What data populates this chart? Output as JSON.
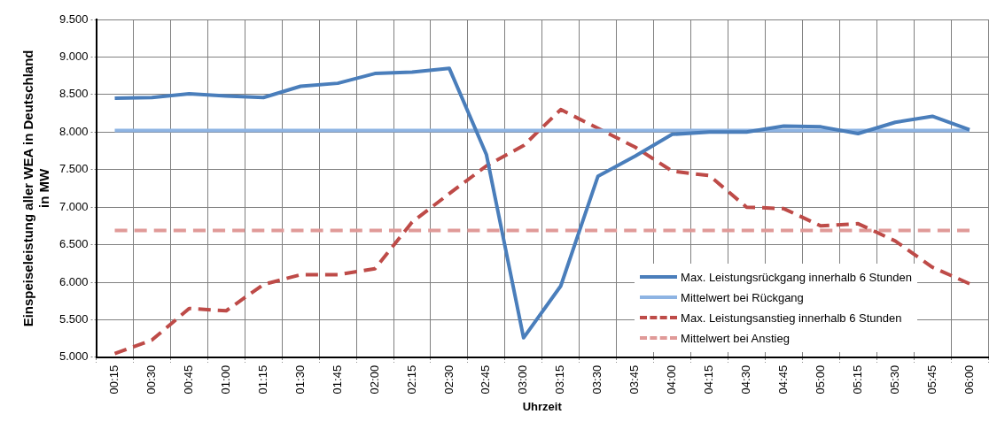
{
  "chart_data": {
    "type": "line",
    "xlabel": "Uhrzeit",
    "ylabel": "Einspeiseleistung aller WEA in Deutschland in MW",
    "categories": [
      "00:15",
      "00:30",
      "00:45",
      "01:00",
      "01:15",
      "01:30",
      "01:45",
      "02:00",
      "02:15",
      "02:30",
      "02:45",
      "03:00",
      "03:15",
      "03:30",
      "03:45",
      "04:00",
      "04:15",
      "04:30",
      "04:45",
      "05:00",
      "05:15",
      "05:30",
      "05:45",
      "06:00"
    ],
    "series": [
      {
        "name": "Max. Leistungsrückgang innerhalb  6 Stunden",
        "color": "#4a7ebb",
        "line_style": "solid",
        "values": [
          8450,
          8460,
          8510,
          8480,
          8460,
          8610,
          8650,
          8780,
          8800,
          8850,
          7700,
          5260,
          5950,
          7410,
          7680,
          7970,
          8000,
          8000,
          8080,
          8070,
          7980,
          8130,
          8210,
          8030
        ]
      },
      {
        "name": "Mittelwert bei Rückgang",
        "color": "#8eb4e3",
        "line_style": "solid",
        "values": [
          8020,
          8020,
          8020,
          8020,
          8020,
          8020,
          8020,
          8020,
          8020,
          8020,
          8020,
          8020,
          8020,
          8020,
          8020,
          8020,
          8020,
          8020,
          8020,
          8020,
          8020,
          8020,
          8020,
          8020
        ]
      },
      {
        "name": "Max. Leistungsanstieg innerhalb  6 Stunden",
        "color": "#be4b48",
        "line_style": "dashed",
        "values": [
          5050,
          5230,
          5650,
          5620,
          5970,
          6100,
          6100,
          6180,
          6800,
          7180,
          7550,
          7820,
          8300,
          8050,
          7800,
          7480,
          7420,
          7000,
          6980,
          6750,
          6780,
          6550,
          6200,
          5980
        ]
      },
      {
        "name": "Mittelwert bei Anstieg",
        "color": "#e09a98",
        "line_style": "dashed",
        "values": [
          6690,
          6690,
          6690,
          6690,
          6690,
          6690,
          6690,
          6690,
          6690,
          6690,
          6690,
          6690,
          6690,
          6690,
          6690,
          6690,
          6690,
          6690,
          6690,
          6690,
          6690,
          6690,
          6690,
          6690
        ]
      }
    ],
    "ylim": [
      5000,
      9500
    ],
    "yticks": [
      {
        "value": 5000,
        "label": "5.000"
      },
      {
        "value": 5500,
        "label": "5.500"
      },
      {
        "value": 6000,
        "label": "6.000"
      },
      {
        "value": 6500,
        "label": "6.500"
      },
      {
        "value": 7000,
        "label": "7.000"
      },
      {
        "value": 7500,
        "label": "7.500"
      },
      {
        "value": 8000,
        "label": "8.000"
      },
      {
        "value": 8500,
        "label": "8.500"
      },
      {
        "value": 9000,
        "label": "9.000"
      },
      {
        "value": 9500,
        "label": "9.500"
      }
    ],
    "grid": true,
    "legend": "bottom right",
    "marker": "none"
  }
}
